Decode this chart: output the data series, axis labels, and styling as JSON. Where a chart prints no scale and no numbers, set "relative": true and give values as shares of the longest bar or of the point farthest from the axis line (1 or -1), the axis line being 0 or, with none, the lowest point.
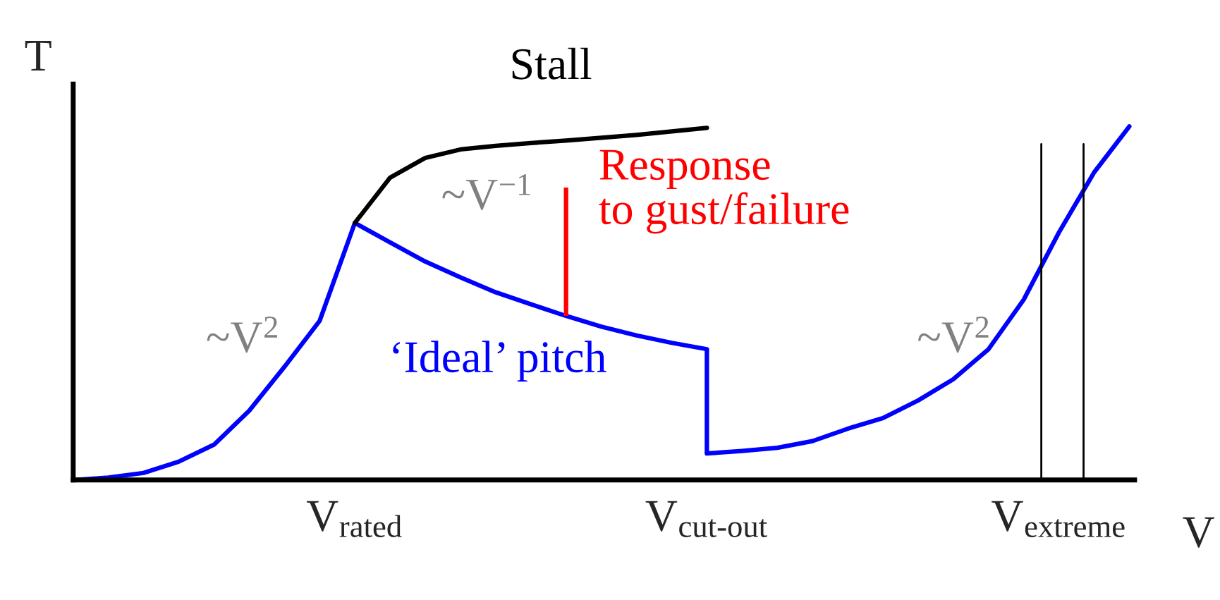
{
  "chart_data": {
    "type": "line",
    "relative": true,
    "xlabel": "V",
    "ylabel": "T",
    "categories": [
      null,
      null,
      null,
      null,
      null,
      null,
      null,
      null,
      "V$_{rated}$",
      null,
      null,
      null,
      null,
      null,
      null,
      null,
      null,
      null,
      "V$_{cut-out}$",
      null,
      null,
      null,
      null,
      null,
      null,
      null,
      null,
      null,
      "V$_{extreme}$",
      null,
      null
    ],
    "series": [
      {
        "color": "#0000ff",
        "values": [
          0,
          0.007,
          0.02,
          0.052,
          0.1,
          0.196,
          0.32,
          0.45,
          0.727,
          0.672,
          0.618,
          0.573,
          0.531,
          0.497,
          0.464,
          0.434,
          0.409,
          0.388,
          0.37,
          null,
          null,
          null,
          null,
          null,
          null,
          null,
          null,
          null,
          null,
          null,
          null
        ]
      },
      {
        "color": "#0000ff",
        "values": [
          null,
          null,
          null,
          null,
          null,
          null,
          null,
          null,
          null,
          null,
          null,
          null,
          null,
          null,
          null,
          null,
          null,
          null,
          0.075,
          0.082,
          0.091,
          0.11,
          0.145,
          0.175,
          0.225,
          0.285,
          0.37,
          0.51,
          0.7,
          0.87,
          1.0
        ]
      },
      {
        "color": "#000000",
        "values": [
          null,
          null,
          null,
          null,
          null,
          null,
          null,
          null,
          0.727,
          0.855,
          0.911,
          0.935,
          0.945,
          0.953,
          0.96,
          0.968,
          0.976,
          0.986,
          0.996,
          null,
          null,
          null,
          null,
          null,
          null,
          null,
          null,
          null,
          null,
          null,
          null
        ]
      }
    ],
    "annotations": [
      "Stall",
      "~V$^{−1}$",
      "Response\nto gust/failure",
      "~V$^{2}$",
      "‘Ideal’ pitch",
      "~V$^{2}$"
    ],
    "grid": false,
    "legend": false
  }
}
